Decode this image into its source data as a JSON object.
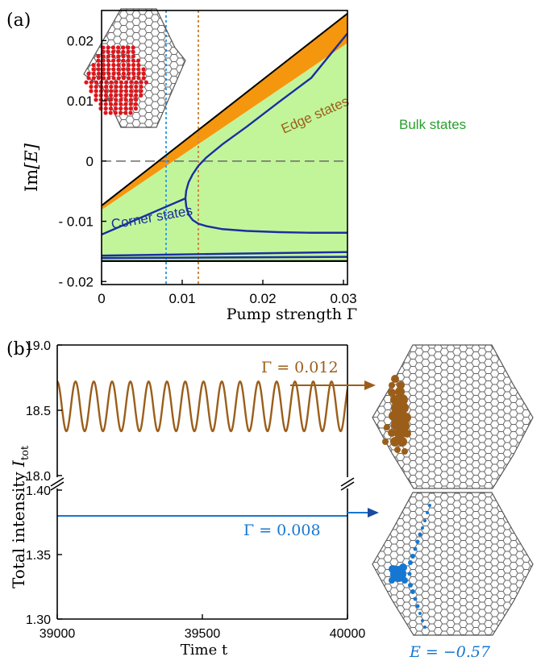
{
  "colors": {
    "edge_fill": "#f5960f",
    "bulk_fill": "#c2f59a",
    "blue_curve": "#1a2fa0",
    "cyan_dash": "#3aa0e8",
    "orange_dash": "#d08a3c",
    "corner_highlight": "#e0151b",
    "brown": "#9b5e1a",
    "blue_trace": "#1677d2",
    "lattice": "#555555"
  },
  "panel_labels": {
    "a": "(a)",
    "b": "(b)"
  },
  "panel_a": {
    "ylabel_main": "Im",
    "ylabel_var": "[E]",
    "xlabel": "Pump strength Γ",
    "x_ticks": [
      "0",
      "0.01",
      "0.02",
      "0.03"
    ],
    "y_ticks": [
      "0.02",
      "0.01",
      "0",
      "- 0.01",
      "- 0.02"
    ],
    "labels": {
      "edge": "Edge states",
      "bulk": "Bulk states",
      "corner": "Corner states"
    }
  },
  "panel_b": {
    "ylabel_main": "Total intensity ",
    "ylabel_var": "I",
    "ylabel_sub": "tot",
    "xlabel": "Time t",
    "x_ticks": [
      "39000",
      "39500",
      "40000"
    ],
    "y_ticks_top": [
      "19.0",
      "18.5",
      "18.0"
    ],
    "y_ticks_bottom": [
      "1.40",
      "1.35",
      "1.30"
    ],
    "gamma_top": "Γ = 0.012",
    "gamma_bottom": "Γ = 0.008",
    "energy": "E = −0.57"
  },
  "chart_data": [
    {
      "type": "area",
      "panel": "a",
      "xlabel": "Pump strength Γ",
      "ylabel": "Im[E]",
      "xlim": [
        0,
        0.0305
      ],
      "ylim": [
        -0.0205,
        0.025
      ],
      "x_ticks": [
        0,
        0.01,
        0.02,
        0.03
      ],
      "y_ticks": [
        -0.02,
        -0.01,
        0,
        0.01,
        0.02
      ],
      "reference_lines": [
        {
          "orientation": "horizontal",
          "y": 0,
          "style": "dashed",
          "color": "gray"
        },
        {
          "orientation": "vertical",
          "x": 0.008,
          "style": "dotted",
          "color": "cyan"
        },
        {
          "orientation": "vertical",
          "x": 0.012,
          "style": "dotted",
          "color": "orange"
        }
      ],
      "series": [
        {
          "name": "Edge states",
          "kind": "band",
          "x": [
            0,
            0.0305
          ],
          "upper": [
            -0.0074,
            0.0245
          ],
          "lower": [
            -0.0081,
            0.0196
          ]
        },
        {
          "name": "Bulk states",
          "kind": "band",
          "x": [
            0,
            0.0305
          ],
          "upper": [
            -0.0081,
            0.0196
          ],
          "lower": [
            -0.0166,
            -0.0166
          ]
        },
        {
          "kind": "line",
          "x": [
            0,
            0.0104
          ],
          "y": [
            -0.0122,
            -0.0062
          ]
        },
        {
          "kind": "line",
          "x": [
            0.0104,
            0.0105,
            0.0108,
            0.0113,
            0.012,
            0.013,
            0.015,
            0.018,
            0.022,
            0.026,
            0.0305
          ],
          "y": [
            -0.0062,
            -0.0049,
            -0.0035,
            -0.0022,
            -0.0008,
            0.0006,
            0.0028,
            0.0057,
            0.0098,
            0.0138,
            0.0212
          ]
        },
        {
          "kind": "line",
          "x": [
            0.0104,
            0.0105,
            0.0108,
            0.0113,
            0.012,
            0.013,
            0.015,
            0.018,
            0.022,
            0.026,
            0.0305
          ],
          "y": [
            -0.0062,
            -0.0075,
            -0.0089,
            -0.0098,
            -0.0104,
            -0.0108,
            -0.0113,
            -0.0116,
            -0.0118,
            -0.0119,
            -0.0119
          ]
        },
        {
          "kind": "line",
          "x": [
            0,
            0.0305
          ],
          "y": [
            -0.0157,
            -0.0151
          ]
        },
        {
          "kind": "line",
          "x": [
            0,
            0.0305
          ],
          "y": [
            -0.0161,
            -0.0159
          ]
        },
        {
          "kind": "line",
          "x": [
            0,
            0.0305
          ],
          "y": [
            -0.0166,
            -0.0166
          ]
        }
      ]
    },
    {
      "type": "line",
      "panel": "b",
      "xlabel": "Time t",
      "ylabel": "Total intensity I_tot",
      "xlim": [
        39000,
        40000
      ],
      "x_ticks": [
        39000,
        39500,
        40000
      ],
      "broken_y_axis": true,
      "segments": [
        {
          "ylim": [
            18.0,
            19.0
          ],
          "y_ticks": [
            18.0,
            18.5,
            19.0
          ]
        },
        {
          "ylim": [
            1.3,
            1.4
          ],
          "y_ticks": [
            1.3,
            1.35,
            1.4
          ]
        }
      ],
      "series": [
        {
          "name": "Γ = 0.012",
          "form": "oscillation",
          "mean": 18.53,
          "amplitude": 0.19,
          "period": 63
        },
        {
          "name": "Γ = 0.008",
          "form": "constant",
          "value": 1.38
        }
      ]
    }
  ]
}
